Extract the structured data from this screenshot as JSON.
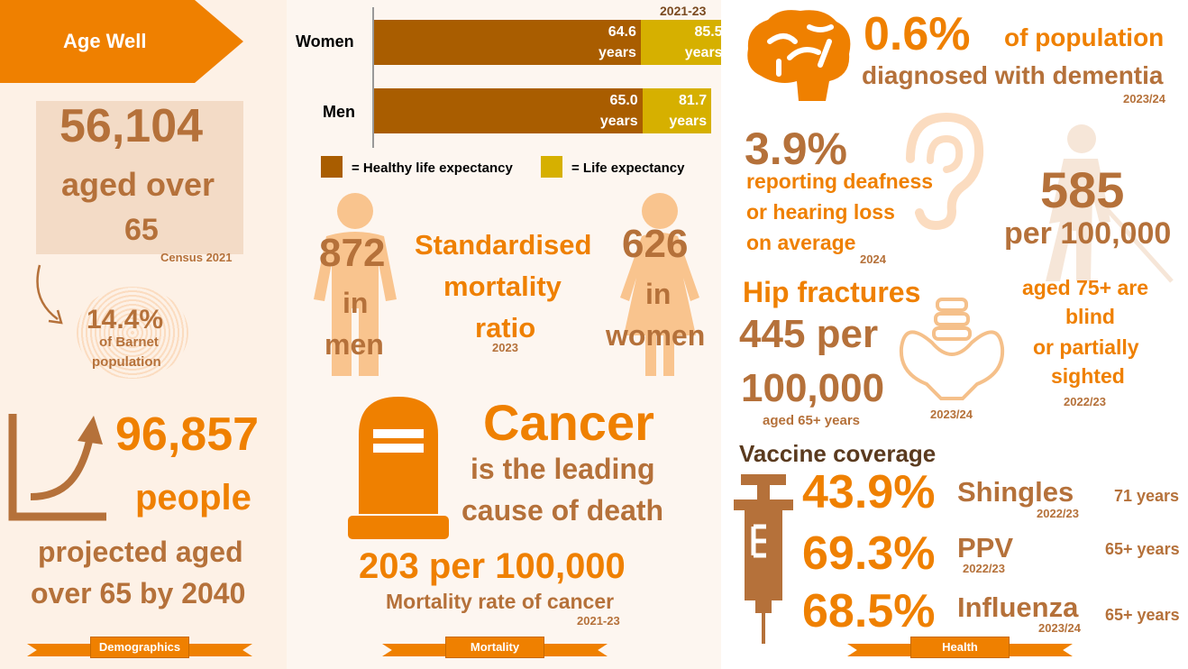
{
  "demographics": {
    "banner": "Age Well",
    "aged_over_count": "56,104",
    "aged_over_label1": "aged over",
    "aged_over_label2": "65",
    "census_source": "Census 2021",
    "share_pct": "14.4%",
    "share_label1": "of Barnet",
    "share_label2": "population",
    "projected_count": "96,857",
    "projected_unit": "people",
    "projected_label1": "projected aged",
    "projected_label2": "over 65 by 2040",
    "ribbon": "Demographics"
  },
  "mortality": {
    "period": "2021-23",
    "legend_healthy": "= Healthy life expectancy",
    "legend_life": "= Life expectancy",
    "colors": {
      "healthy": "#a95d00",
      "life": "#d6b000"
    },
    "chart_data": {
      "type": "bar",
      "categories": [
        "Women",
        "Men"
      ],
      "series": [
        {
          "name": "Healthy life expectancy",
          "values": [
            64.6,
            65.0
          ],
          "labels": [
            "64.6",
            "65.0"
          ]
        },
        {
          "name": "Life expectancy",
          "values": [
            85.5,
            81.7
          ],
          "labels": [
            "85.5",
            "81.7"
          ]
        }
      ],
      "unit": "years"
    },
    "smr_men_value": "872",
    "smr_men_in": "in",
    "smr_men_label": "men",
    "smr_title1": "Standardised",
    "smr_title2": "mortality",
    "smr_title3": "ratio",
    "smr_year": "2023",
    "smr_women_value": "626",
    "smr_women_in": "in",
    "smr_women_label": "women",
    "cancer_title": "Cancer",
    "cancer_line1": "is the leading",
    "cancer_line2": "cause of death",
    "cancer_rate": "203 per 100,000",
    "cancer_rate_label": "Mortality rate of cancer",
    "cancer_period": "2021-23",
    "ribbon": "Mortality"
  },
  "health": {
    "dementia_pct": "0.6%",
    "dementia_label1": "of population",
    "dementia_label2": "diagnosed with dementia",
    "dementia_year": "2023/24",
    "deaf_pct": "3.9%",
    "deaf_label1": "reporting deafness",
    "deaf_label2": "or hearing loss",
    "deaf_label3": "on average",
    "deaf_year": "2024",
    "blind_value": "585",
    "blind_unit": "per 100,000",
    "blind_label1": "aged 75+ are",
    "blind_label2": "blind",
    "blind_label3": "or partially",
    "blind_label4": "sighted",
    "blind_year": "2022/23",
    "hip_title": "Hip fractures",
    "hip_value1": "445 per",
    "hip_value2": "100,000",
    "hip_age": "aged 65+ years",
    "hip_year": "2023/24",
    "vaccine_title": "Vaccine coverage",
    "vaccines": [
      {
        "pct": "43.9%",
        "name": "Shingles",
        "year": "2022/23",
        "age": "71 years"
      },
      {
        "pct": "69.3%",
        "name": "PPV",
        "year": "2022/23",
        "age": "65+ years"
      },
      {
        "pct": "68.5%",
        "name": "Influenza",
        "year": "2023/24",
        "age": "65+ years"
      }
    ],
    "ribbon": "Health"
  }
}
